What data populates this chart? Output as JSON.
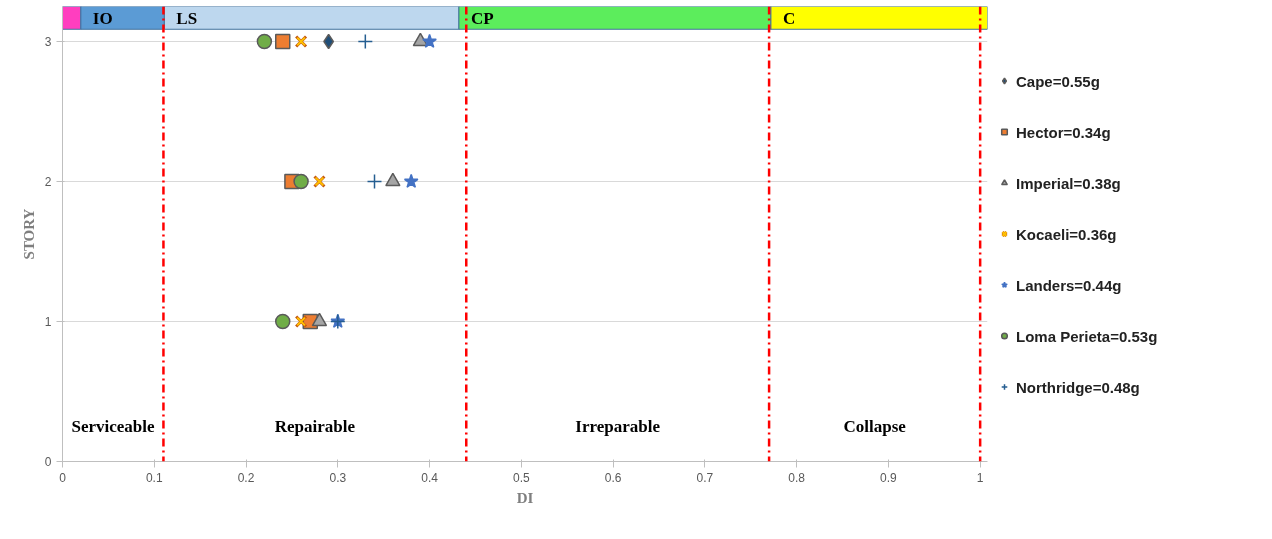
{
  "chart_data": {
    "type": "scatter",
    "xlabel": "DI",
    "ylabel": "STORY",
    "xlim": [
      0,
      1.008
    ],
    "xticks": [
      0,
      0.1,
      0.2,
      0.3,
      0.4,
      0.5,
      0.6,
      0.7,
      0.8,
      0.9,
      1
    ],
    "ylim": [
      0,
      3.25
    ],
    "yticks": [
      0,
      1,
      2,
      3
    ],
    "grid": "y",
    "legend": "right",
    "series": [
      {
        "name": "Cape=0.55g",
        "color": "#1f4e79",
        "marker": "diamond",
        "x": [
          0.29
        ],
        "values": [
          3
        ]
      },
      {
        "name": "Hector=0.34g",
        "color": "#ed7d31",
        "marker": "square",
        "x": [
          0.27,
          0.25,
          0.24
        ],
        "values": [
          1,
          2,
          3
        ]
      },
      {
        "name": "Imperial=0.38g",
        "color": "#a5a5a5",
        "marker": "triangle",
        "x": [
          0.28,
          0.36,
          0.39
        ],
        "values": [
          1,
          2,
          3
        ]
      },
      {
        "name": "Kocaeli=0.36g",
        "color": "#ffc000",
        "marker": "x",
        "x": [
          0.26,
          0.28,
          0.26
        ],
        "values": [
          1,
          2,
          3
        ]
      },
      {
        "name": "Landers=0.44g",
        "color": "#4472c4",
        "marker": "star",
        "x": [
          0.3,
          0.38,
          0.4
        ],
        "values": [
          1,
          2,
          3
        ]
      },
      {
        "name": "Loma Perieta=0.53g",
        "color": "#70ad47",
        "marker": "circle",
        "x": [
          0.24,
          0.26,
          0.22
        ],
        "values": [
          1,
          2,
          3
        ]
      },
      {
        "name": "Northridge=0.48g",
        "color": "#255e91",
        "marker": "cross",
        "x": [
          0.3,
          0.34,
          0.33
        ],
        "values": [
          1,
          2,
          3
        ]
      }
    ],
    "ref_lines": [
      {
        "axis": "x",
        "value": 0.11,
        "color": "#ff0000",
        "line_style": "dashdot"
      },
      {
        "axis": "x",
        "value": 0.44,
        "color": "#ff0000",
        "line_style": "dashdot"
      },
      {
        "axis": "x",
        "value": 0.77,
        "color": "#ff0000",
        "line_style": "dashdot"
      },
      {
        "axis": "x",
        "value": 1.0,
        "color": "#ff0000",
        "line_style": "dashdot"
      }
    ],
    "bands": [
      {
        "axis": "x",
        "from": 0,
        "to": 0.02,
        "label": null,
        "color": "#ff3ebf"
      },
      {
        "axis": "x",
        "from": 0.02,
        "to": 0.111,
        "label": "IO",
        "color": "#5b9bd5"
      },
      {
        "axis": "x",
        "from": 0.111,
        "to": 0.432,
        "label": "LS",
        "color": "#bdd7ee"
      },
      {
        "axis": "x",
        "from": 0.432,
        "to": 0.772,
        "label": "CP",
        "color": "#5ced5c"
      },
      {
        "axis": "x",
        "from": 0.772,
        "to": 1.008,
        "label": "C",
        "color": "#ffff00"
      }
    ],
    "annotations": [
      "Serviceable",
      "Repairable",
      "Irreparable",
      "Collapse"
    ]
  }
}
